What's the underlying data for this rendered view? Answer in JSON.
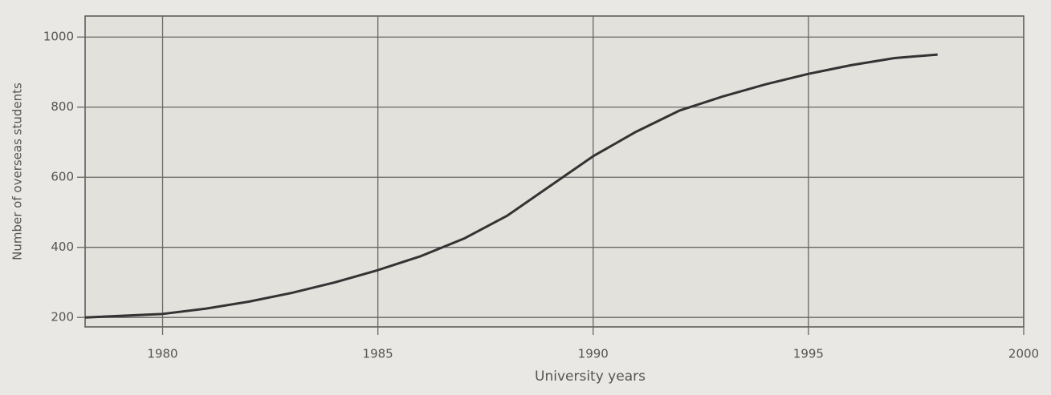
{
  "chart_data": {
    "type": "line",
    "x_label": "University years",
    "y_label": "Number of overseas students",
    "x": [
      1978.2,
      1980,
      1981,
      1982,
      1983,
      1984,
      1985,
      1986,
      1987,
      1988,
      1989,
      1990,
      1991,
      1992,
      1993,
      1994,
      1995,
      1996,
      1997,
      1998
    ],
    "values": [
      200,
      210,
      225,
      245,
      270,
      300,
      335,
      375,
      425,
      490,
      575,
      660,
      730,
      790,
      830,
      865,
      895,
      920,
      940,
      950
    ],
    "color": "#333333",
    "xlim": [
      1978.2,
      2000
    ],
    "ylim": [
      173,
      1060
    ],
    "xticks": [
      1980,
      1985,
      1990,
      1995,
      2000
    ],
    "yticks": [
      200,
      400,
      600,
      800,
      1000
    ],
    "grid": true
  }
}
